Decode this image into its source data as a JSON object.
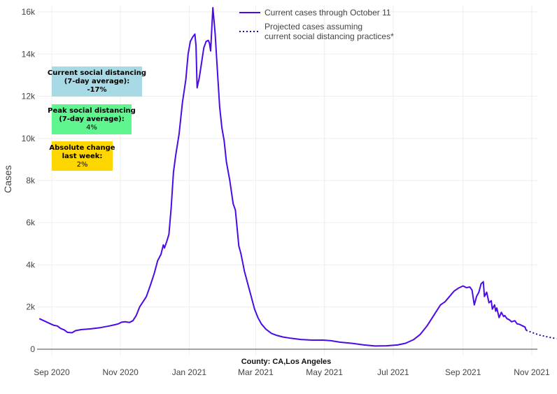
{
  "chart_data": {
    "type": "line",
    "xlabel": "County: CA,Los Angeles",
    "ylabel": "Cases",
    "x_ticks": [
      "Sep 2020",
      "Nov 2020",
      "Jan 2021",
      "Mar 2021",
      "May 2021",
      "Jul 2021",
      "Sep 2021",
      "Nov 2021"
    ],
    "x_tick_dates": [
      "2020-09-01",
      "2020-11-01",
      "2021-01-01",
      "2021-03-01",
      "2021-05-01",
      "2021-07-01",
      "2021-09-01",
      "2021-11-01"
    ],
    "x_range": [
      "2020-08-19",
      "2021-11-06"
    ],
    "y_ticks": [
      "0",
      "2k",
      "4k",
      "6k",
      "8k",
      "10k",
      "12k",
      "14k",
      "16k"
    ],
    "y_tick_values": [
      0,
      2000,
      4000,
      6000,
      8000,
      10000,
      12000,
      14000,
      16000
    ],
    "ylim": [
      -300,
      16300
    ],
    "grid": true,
    "legend_position": "top-right",
    "colors": {
      "current": "#4b0ae6",
      "projected": "#2a0a9c"
    },
    "series": [
      {
        "name": "Current cases through October 11",
        "style": "solid",
        "points": [
          [
            "2020-08-21",
            1450
          ],
          [
            "2020-08-25",
            1350
          ],
          [
            "2020-08-31",
            1200
          ],
          [
            "2020-09-03",
            1130
          ],
          [
            "2020-09-06",
            1100
          ],
          [
            "2020-09-09",
            980
          ],
          [
            "2020-09-12",
            920
          ],
          [
            "2020-09-15",
            800
          ],
          [
            "2020-09-19",
            780
          ],
          [
            "2020-09-22",
            880
          ],
          [
            "2020-09-27",
            930
          ],
          [
            "2020-10-05",
            960
          ],
          [
            "2020-10-14",
            1020
          ],
          [
            "2020-10-22",
            1100
          ],
          [
            "2020-10-27",
            1160
          ],
          [
            "2020-10-30",
            1200
          ],
          [
            "2020-11-02",
            1280
          ],
          [
            "2020-11-05",
            1300
          ],
          [
            "2020-11-09",
            1270
          ],
          [
            "2020-11-12",
            1350
          ],
          [
            "2020-11-15",
            1600
          ],
          [
            "2020-11-18",
            2000
          ],
          [
            "2020-11-21",
            2250
          ],
          [
            "2020-11-24",
            2500
          ],
          [
            "2020-11-28",
            3100
          ],
          [
            "2020-12-01",
            3600
          ],
          [
            "2020-12-04",
            4200
          ],
          [
            "2020-12-07",
            4500
          ],
          [
            "2020-12-09",
            4950
          ],
          [
            "2020-12-10",
            4800
          ],
          [
            "2020-12-12",
            5100
          ],
          [
            "2020-12-14",
            5450
          ],
          [
            "2020-12-16",
            6700
          ],
          [
            "2020-12-18",
            8400
          ],
          [
            "2020-12-20",
            9200
          ],
          [
            "2020-12-23",
            10200
          ],
          [
            "2020-12-26",
            11700
          ],
          [
            "2020-12-29",
            12800
          ],
          [
            "2020-12-31",
            14000
          ],
          [
            "2021-01-02",
            14600
          ],
          [
            "2021-01-04",
            14800
          ],
          [
            "2021-01-06",
            14950
          ],
          [
            "2021-01-07",
            14400
          ],
          [
            "2021-01-08",
            12400
          ],
          [
            "2021-01-10",
            12900
          ],
          [
            "2021-01-12",
            13600
          ],
          [
            "2021-01-14",
            14300
          ],
          [
            "2021-01-16",
            14600
          ],
          [
            "2021-01-18",
            14650
          ],
          [
            "2021-01-19",
            14500
          ],
          [
            "2021-01-20",
            14150
          ],
          [
            "2021-01-22",
            16200
          ],
          [
            "2021-01-24",
            15000
          ],
          [
            "2021-01-26",
            13200
          ],
          [
            "2021-01-28",
            11500
          ],
          [
            "2021-01-30",
            10500
          ],
          [
            "2021-02-01",
            9900
          ],
          [
            "2021-02-03",
            8900
          ],
          [
            "2021-02-06",
            8000
          ],
          [
            "2021-02-09",
            6900
          ],
          [
            "2021-02-11",
            6600
          ],
          [
            "2021-02-14",
            4900
          ],
          [
            "2021-02-16",
            4500
          ],
          [
            "2021-02-19",
            3700
          ],
          [
            "2021-02-22",
            3100
          ],
          [
            "2021-02-25",
            2500
          ],
          [
            "2021-02-28",
            1900
          ],
          [
            "2021-03-03",
            1500
          ],
          [
            "2021-03-06",
            1200
          ],
          [
            "2021-03-10",
            950
          ],
          [
            "2021-03-15",
            750
          ],
          [
            "2021-03-20",
            650
          ],
          [
            "2021-03-25",
            580
          ],
          [
            "2021-04-01",
            520
          ],
          [
            "2021-04-10",
            460
          ],
          [
            "2021-04-20",
            430
          ],
          [
            "2021-04-30",
            430
          ],
          [
            "2021-05-07",
            400
          ],
          [
            "2021-05-15",
            330
          ],
          [
            "2021-05-25",
            280
          ],
          [
            "2021-06-05",
            200
          ],
          [
            "2021-06-15",
            150
          ],
          [
            "2021-06-25",
            160
          ],
          [
            "2021-07-05",
            200
          ],
          [
            "2021-07-12",
            280
          ],
          [
            "2021-07-19",
            450
          ],
          [
            "2021-07-25",
            700
          ],
          [
            "2021-07-31",
            1100
          ],
          [
            "2021-08-06",
            1600
          ],
          [
            "2021-08-12",
            2100
          ],
          [
            "2021-08-16",
            2250
          ],
          [
            "2021-08-20",
            2500
          ],
          [
            "2021-08-24",
            2750
          ],
          [
            "2021-08-28",
            2900
          ],
          [
            "2021-09-01",
            3000
          ],
          [
            "2021-09-04",
            2920
          ],
          [
            "2021-09-07",
            2950
          ],
          [
            "2021-09-09",
            2800
          ],
          [
            "2021-09-11",
            2100
          ],
          [
            "2021-09-13",
            2500
          ],
          [
            "2021-09-15",
            2700
          ],
          [
            "2021-09-17",
            3100
          ],
          [
            "2021-09-19",
            3200
          ],
          [
            "2021-09-20",
            2500
          ],
          [
            "2021-09-22",
            2700
          ],
          [
            "2021-09-24",
            2200
          ],
          [
            "2021-09-26",
            2300
          ],
          [
            "2021-09-27",
            1900
          ],
          [
            "2021-09-29",
            2100
          ],
          [
            "2021-09-30",
            1800
          ],
          [
            "2021-10-01",
            1950
          ],
          [
            "2021-10-03",
            1500
          ],
          [
            "2021-10-05",
            1750
          ],
          [
            "2021-10-07",
            1550
          ],
          [
            "2021-10-08",
            1600
          ],
          [
            "2021-10-10",
            1450
          ],
          [
            "2021-10-12",
            1400
          ],
          [
            "2021-10-14",
            1300
          ],
          [
            "2021-10-17",
            1350
          ],
          [
            "2021-10-19",
            1200
          ],
          [
            "2021-10-21",
            1180
          ],
          [
            "2021-10-24",
            1100
          ],
          [
            "2021-10-26",
            1050
          ],
          [
            "2021-10-27",
            900
          ]
        ]
      },
      {
        "name": "Projected cases assuming current social distancing practices*",
        "style": "dotted",
        "points": [
          [
            "2021-10-27",
            900
          ],
          [
            "2021-10-31",
            820
          ],
          [
            "2021-11-04",
            740
          ],
          [
            "2021-11-08",
            670
          ],
          [
            "2021-11-12",
            620
          ],
          [
            "2021-11-16",
            570
          ],
          [
            "2021-11-20",
            530
          ],
          [
            "2021-11-23",
            500
          ]
        ]
      }
    ],
    "legend": [
      {
        "label_lines": [
          "Current cases through October 11"
        ],
        "style": "solid"
      },
      {
        "label_lines": [
          "Projected cases assuming",
          "current social distancing practices*"
        ],
        "style": "dotted"
      }
    ],
    "annotations": [
      {
        "lines": [
          "Current social distancing",
          "(7-day average):",
          "-17%"
        ],
        "bold_lines": [
          0,
          1,
          2
        ],
        "bg": "#a8dae6"
      },
      {
        "lines": [
          "Peak social distancing",
          "(7-day average):",
          "4%"
        ],
        "bold_lines": [
          0,
          1
        ],
        "bg": "#5ff58f"
      },
      {
        "lines": [
          "Absolute change",
          "last week:",
          "2%"
        ],
        "bold_lines": [
          0,
          1
        ],
        "bg": "#ffd700"
      }
    ]
  }
}
